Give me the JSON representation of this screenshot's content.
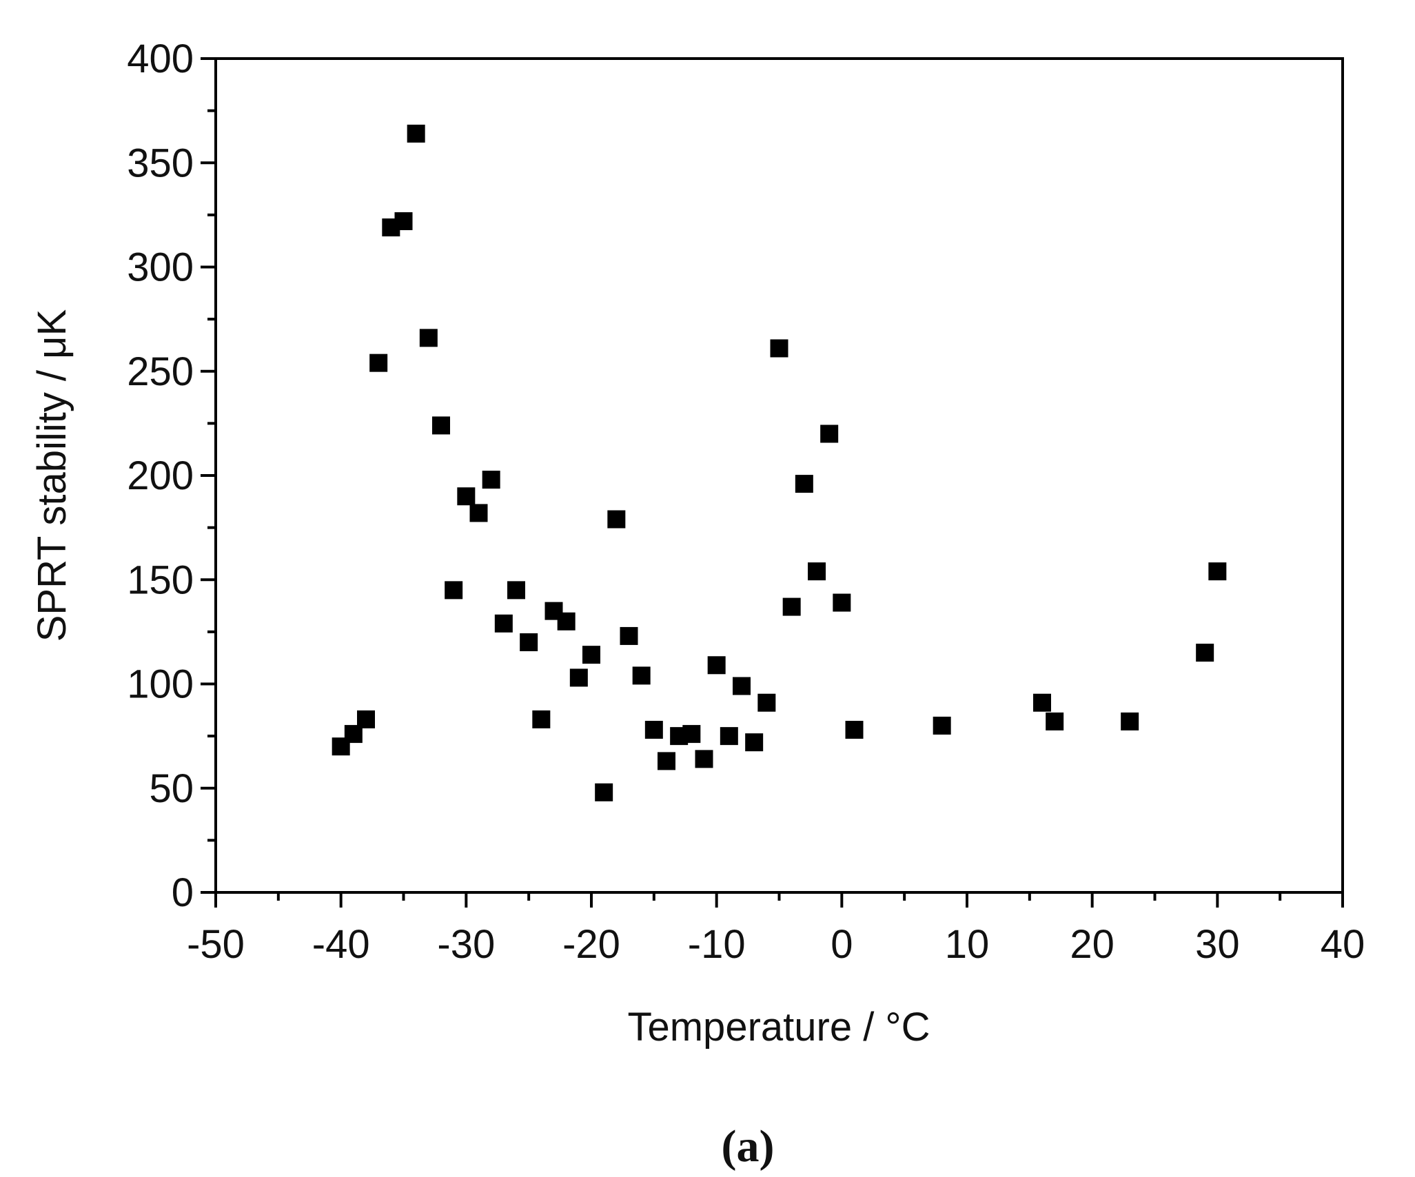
{
  "chart_data": {
    "type": "scatter",
    "title": "",
    "xlabel": "Temperature / °C",
    "ylabel": "SPRT stability / μK",
    "xlim": [
      -50,
      40
    ],
    "ylim": [
      0,
      400
    ],
    "x_ticks": [
      -50,
      -40,
      -30,
      -20,
      -10,
      0,
      10,
      20,
      30,
      40
    ],
    "y_ticks": [
      0,
      50,
      100,
      150,
      200,
      250,
      300,
      350,
      400
    ],
    "grid": false,
    "legend": "none",
    "marker": "square",
    "marker_color": "#000000",
    "panel_label": "(a)",
    "series": [
      {
        "points": [
          {
            "x": -40,
            "y": 70
          },
          {
            "x": -39,
            "y": 76
          },
          {
            "x": -38,
            "y": 83
          },
          {
            "x": -37,
            "y": 254
          },
          {
            "x": -36,
            "y": 319
          },
          {
            "x": -35,
            "y": 322
          },
          {
            "x": -34,
            "y": 364
          },
          {
            "x": -33,
            "y": 266
          },
          {
            "x": -32,
            "y": 224
          },
          {
            "x": -31,
            "y": 145
          },
          {
            "x": -30,
            "y": 190
          },
          {
            "x": -29,
            "y": 182
          },
          {
            "x": -28,
            "y": 198
          },
          {
            "x": -27,
            "y": 129
          },
          {
            "x": -26,
            "y": 145
          },
          {
            "x": -25,
            "y": 120
          },
          {
            "x": -24,
            "y": 83
          },
          {
            "x": -23,
            "y": 135
          },
          {
            "x": -22,
            "y": 130
          },
          {
            "x": -21,
            "y": 103
          },
          {
            "x": -20,
            "y": 114
          },
          {
            "x": -19,
            "y": 48
          },
          {
            "x": -18,
            "y": 179
          },
          {
            "x": -17,
            "y": 123
          },
          {
            "x": -16,
            "y": 104
          },
          {
            "x": -15,
            "y": 78
          },
          {
            "x": -14,
            "y": 63
          },
          {
            "x": -13,
            "y": 75
          },
          {
            "x": -12,
            "y": 76
          },
          {
            "x": -11,
            "y": 64
          },
          {
            "x": -10,
            "y": 109
          },
          {
            "x": -9,
            "y": 75
          },
          {
            "x": -8,
            "y": 99
          },
          {
            "x": -7,
            "y": 72
          },
          {
            "x": -6,
            "y": 91
          },
          {
            "x": -5,
            "y": 261
          },
          {
            "x": -4,
            "y": 137
          },
          {
            "x": -3,
            "y": 196
          },
          {
            "x": -2,
            "y": 154
          },
          {
            "x": -1,
            "y": 220
          },
          {
            "x": 0,
            "y": 139
          },
          {
            "x": 1,
            "y": 78
          },
          {
            "x": 8,
            "y": 80
          },
          {
            "x": 16,
            "y": 91
          },
          {
            "x": 17,
            "y": 82
          },
          {
            "x": 23,
            "y": 82
          },
          {
            "x": 29,
            "y": 115
          },
          {
            "x": 30,
            "y": 154
          }
        ]
      }
    ]
  }
}
